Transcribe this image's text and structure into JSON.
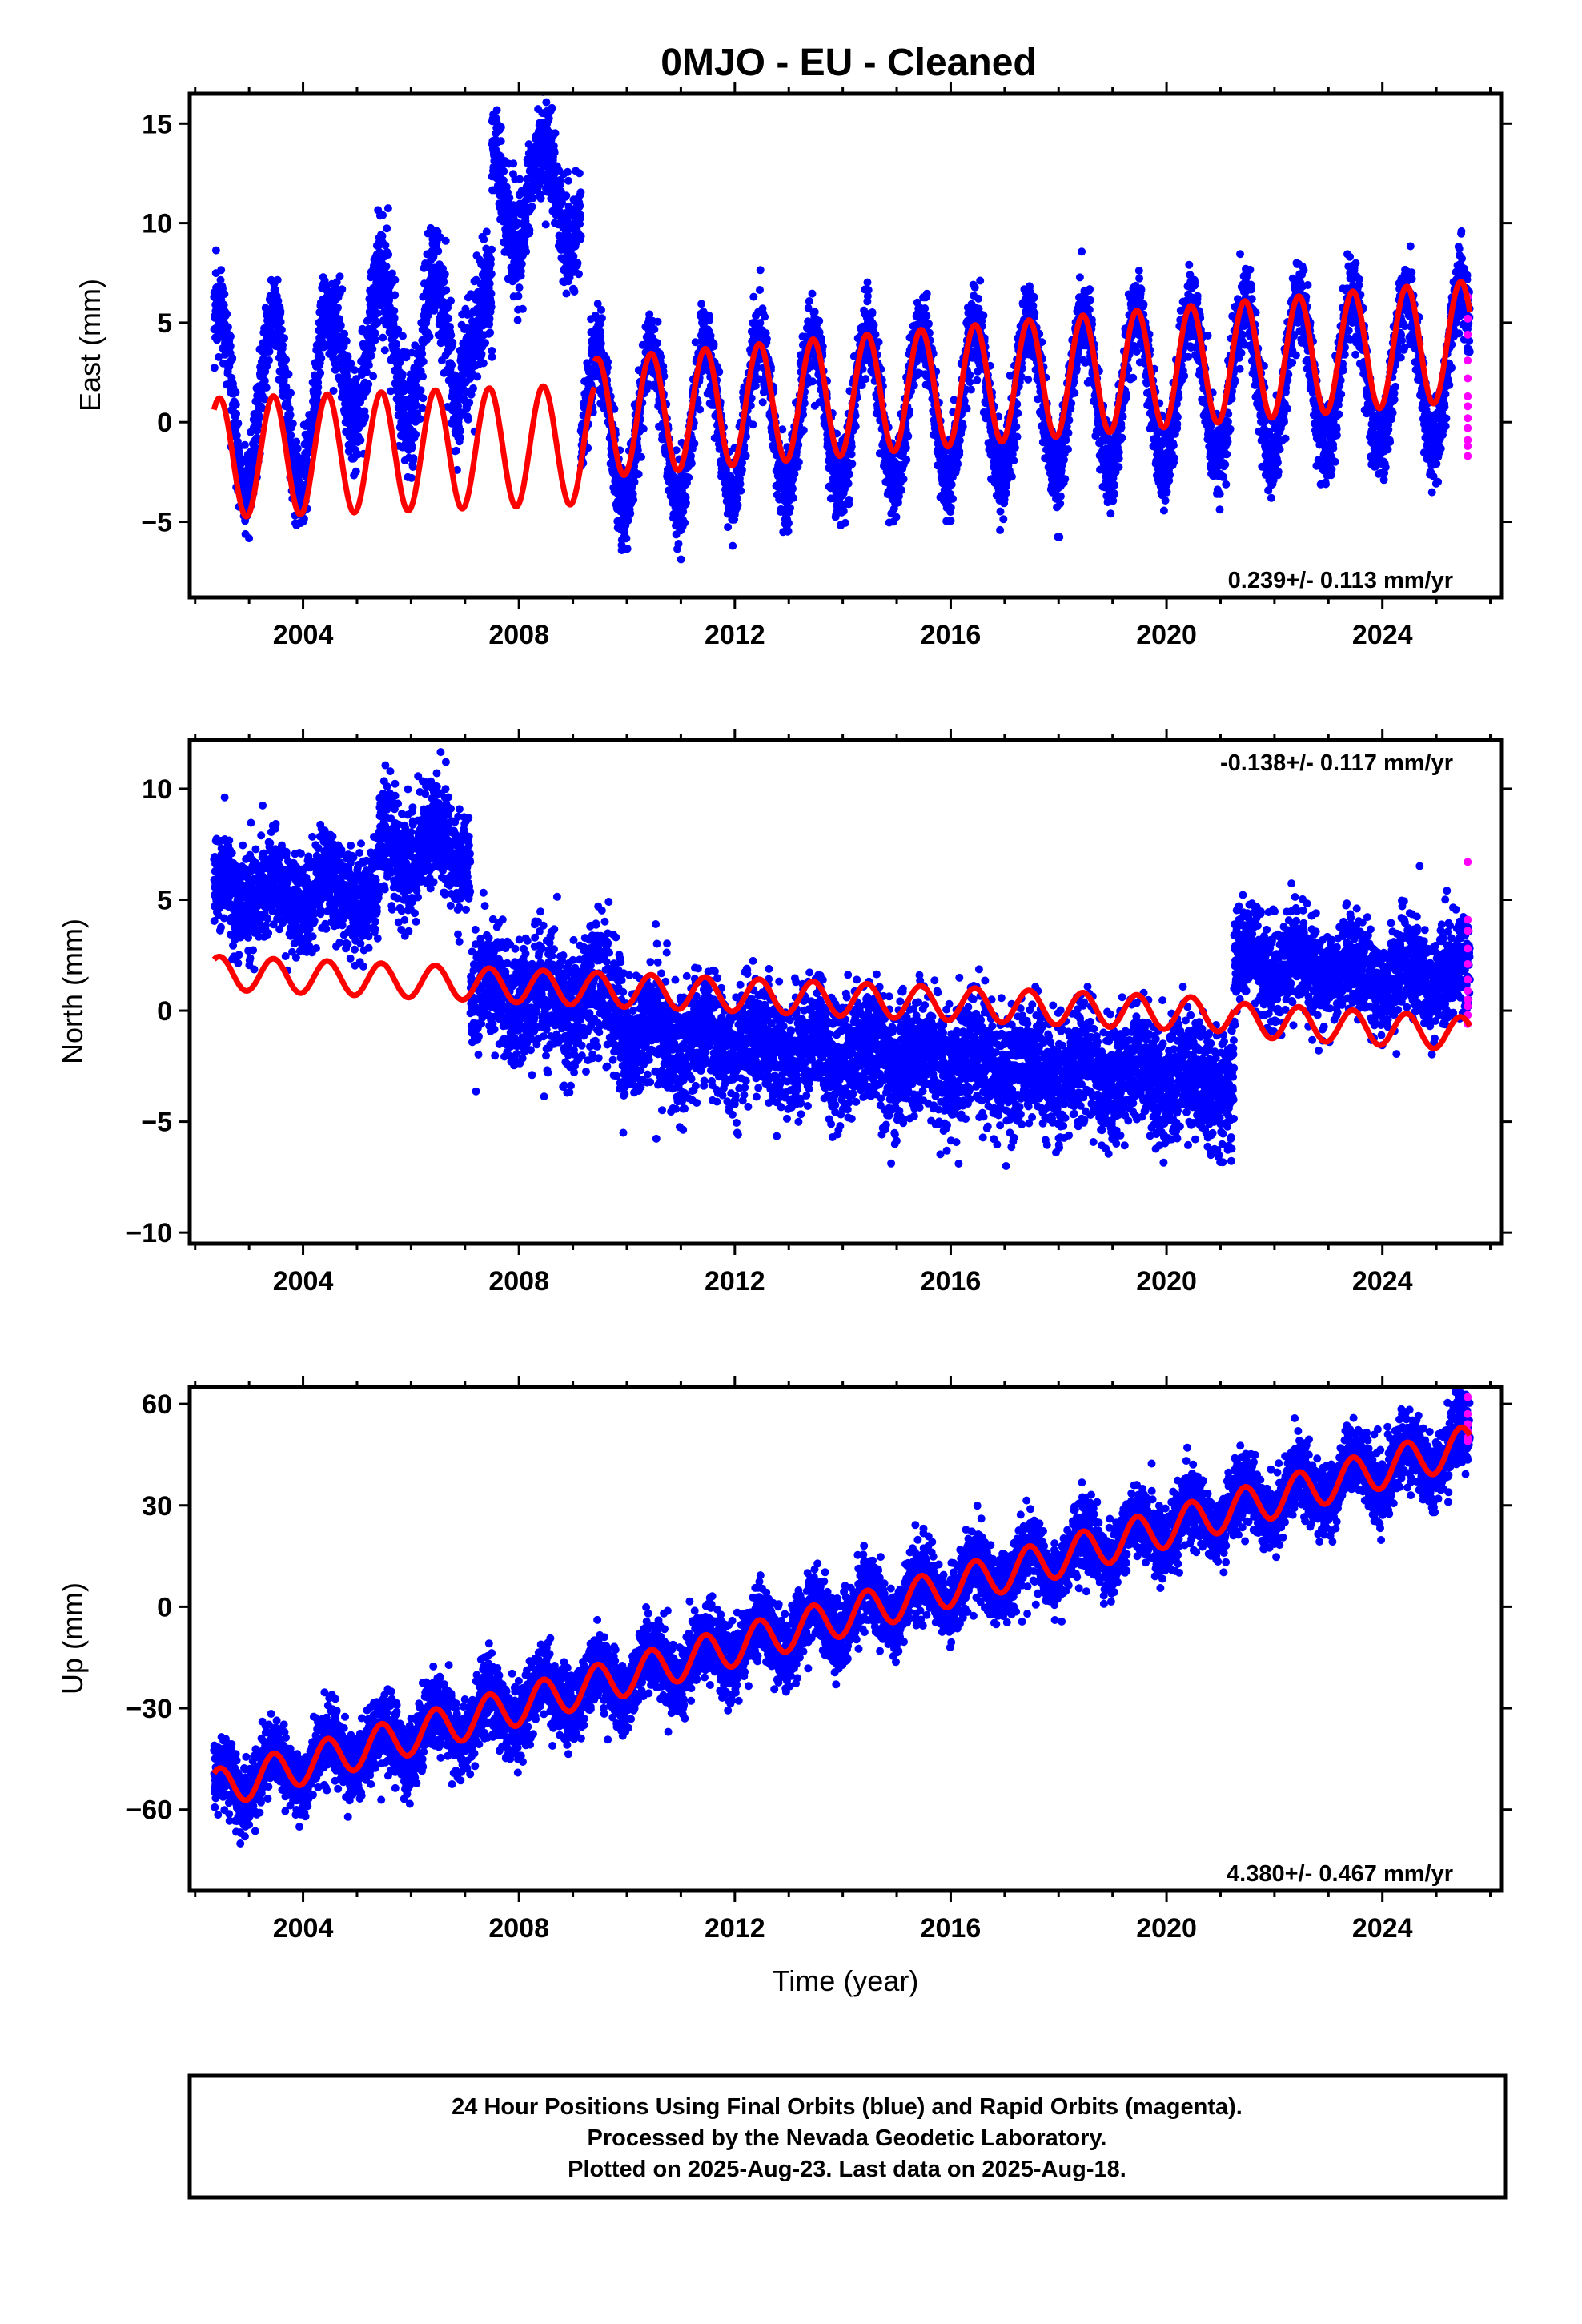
{
  "title": "0MJO  - EU - Cleaned",
  "xlabel": "Time (year)",
  "footer": {
    "line1": "24 Hour Positions Using Final Orbits (blue) and Rapid Orbits (magenta).",
    "line2": "Processed by the Nevada Geodetic Laboratory.",
    "line3": "Plotted on 2025-Aug-23. Last data on 2025-Aug-18."
  },
  "colors": {
    "final": "#0000ff",
    "rapid": "#ff00ff",
    "model": "#ff0000",
    "axes": "#000000"
  },
  "chart_data": [
    {
      "type": "scatter",
      "component": "east",
      "ylabel": "East (mm)",
      "rate": "0.239+/- 0.113 mm/yr",
      "rate_placement": "bottom-right",
      "xlim": [
        2001.9,
        2026.2
      ],
      "ylim": [
        -8.8,
        16.5
      ],
      "xticks": [
        2004,
        2008,
        2012,
        2016,
        2020,
        2024
      ],
      "yticks": [
        -5,
        0,
        5,
        10,
        15
      ],
      "ytick_labels": [
        "−5",
        "0",
        "5",
        "10",
        "15"
      ],
      "grid": false,
      "observed_segments": [
        {
          "x0": 2002.35,
          "x1": 2004.6,
          "mean": 1.0,
          "amp": 4.6,
          "noise": 1.1
        },
        {
          "x0": 2004.6,
          "x1": 2006.9,
          "mean": 3.8,
          "amp": 3.8,
          "noise": 1.3
        },
        {
          "x0": 2006.9,
          "x1": 2007.5,
          "mean": 4.5,
          "amp": 2.0,
          "noise": 1.4
        },
        {
          "x0": 2007.5,
          "x1": 2009.15,
          "mean": 11.5,
          "amp": 2.6,
          "noise": 1.3
        },
        {
          "x0": 2009.15,
          "x1": 2025.62,
          "mean": -0.4,
          "amp": 3.9,
          "noise": 1.0,
          "trend": 0.2
        }
      ],
      "model_segments": [
        {
          "x0": 2002.35,
          "x1": 2009.4,
          "mean": -1.8,
          "amp": 3.0,
          "trend": 0.1
        },
        {
          "x0": 2009.4,
          "x1": 2025.62,
          "mean": 0.2,
          "amp": 3.0,
          "trend": 0.24
        }
      ],
      "rapid": {
        "x": 2025.58,
        "values": [
          6.3,
          5.2,
          4.4,
          3.1,
          2.2,
          1.3,
          0.8,
          0.2,
          -0.3,
          -0.9,
          -1.2,
          -1.7
        ]
      }
    },
    {
      "type": "scatter",
      "component": "north",
      "ylabel": "North (mm)",
      "rate": "-0.138+/- 0.117 mm/yr",
      "rate_placement": "top-right",
      "xlim": [
        2001.9,
        2026.2
      ],
      "ylim": [
        -10.5,
        12.2
      ],
      "xticks": [
        2004,
        2008,
        2012,
        2016,
        2020,
        2024
      ],
      "yticks": [
        -10,
        -5,
        0,
        5,
        10
      ],
      "ytick_labels": [
        "−10",
        "−5",
        "0",
        "5",
        "10"
      ],
      "grid": false,
      "observed_segments": [
        {
          "x0": 2002.35,
          "x1": 2005.4,
          "mean": 5.3,
          "amp": 0.7,
          "noise": 1.1
        },
        {
          "x0": 2005.4,
          "x1": 2007.1,
          "mean": 7.3,
          "amp": 0.8,
          "noise": 1.2
        },
        {
          "x0": 2007.1,
          "x1": 2009.9,
          "mean": 0.6,
          "amp": 0.7,
          "noise": 1.4
        },
        {
          "x0": 2009.9,
          "x1": 2021.25,
          "mean": -1.0,
          "amp": 0.6,
          "noise": 1.35,
          "trend": -0.2
        },
        {
          "x0": 2021.25,
          "x1": 2025.62,
          "mean": 2.1,
          "amp": 0.6,
          "noise": 1.1,
          "trend": -0.15
        }
      ],
      "model_segments": [
        {
          "x0": 2002.35,
          "x1": 2007.1,
          "mean": 1.7,
          "amp": 0.75,
          "trend": -0.1
        },
        {
          "x0": 2007.1,
          "x1": 2021.25,
          "mean": 1.2,
          "amp": 0.75,
          "trend": -0.1
        },
        {
          "x0": 2021.25,
          "x1": 2025.62,
          "mean": -0.4,
          "amp": 0.75,
          "trend": -0.15
        }
      ],
      "rapid": {
        "x": 2025.58,
        "values": [
          6.7,
          4.1,
          3.6,
          2.8,
          2.1,
          1.4,
          0.9,
          0.5,
          0.2,
          -0.2,
          -0.6
        ]
      }
    },
    {
      "type": "scatter",
      "component": "up",
      "ylabel": "Up (mm)",
      "rate": "4.380+/- 0.467 mm/yr",
      "rate_placement": "bottom-right",
      "xlim": [
        2001.9,
        2026.2
      ],
      "ylim": [
        -84,
        65
      ],
      "xticks": [
        2004,
        2008,
        2012,
        2016,
        2020,
        2024
      ],
      "yticks": [
        -60,
        -30,
        0,
        30,
        60
      ],
      "ytick_labels": [
        "−60",
        "−30",
        "0",
        "30",
        "60"
      ],
      "grid": false,
      "observed_segments": [
        {
          "x0": 2002.35,
          "x1": 2025.62,
          "mean": -54,
          "amp": 5.8,
          "noise": 5.2,
          "trend": 4.38,
          "t0": 2002.35
        }
      ],
      "model_segments": [
        {
          "x0": 2002.35,
          "x1": 2025.62,
          "mean": -54,
          "amp": 5.8,
          "trend": 4.38,
          "t0": 2002.35
        }
      ],
      "rapid": {
        "x": 2025.58,
        "values": [
          62,
          57,
          54,
          52,
          50,
          49
        ]
      }
    }
  ]
}
